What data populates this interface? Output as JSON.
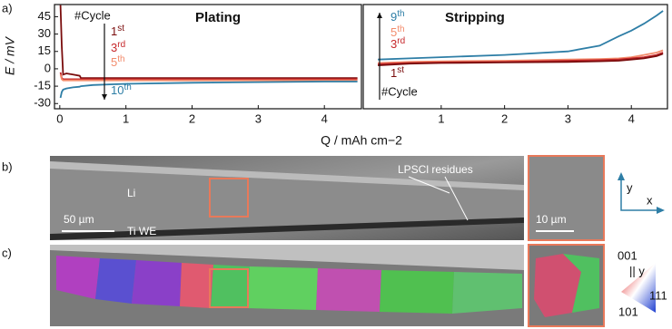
{
  "chart_data": [
    {
      "type": "line",
      "title": "Plating",
      "annotation": "#Cycle",
      "y_label": "E / mV",
      "x_label": "Q / mAh cm−2",
      "xlim": [
        -0.08,
        4.56
      ],
      "xticks": [
        0,
        1,
        2,
        3,
        4
      ],
      "ylim": [
        -34.5,
        55.5
      ],
      "yticks": [
        -30,
        -15,
        0,
        15,
        30,
        45
      ],
      "x": [
        0.01,
        0.03,
        0.05,
        0.1,
        0.2,
        0.3,
        0.32,
        0.5,
        1,
        2,
        3,
        4,
        4.5
      ],
      "series": [
        {
          "name": "1st",
          "color": "#7a0d0d",
          "values": [
            55,
            20,
            -5,
            -4,
            -5,
            -6,
            -8,
            -8,
            -8,
            -8,
            -8,
            -8,
            -8
          ]
        },
        {
          "name": "3rd",
          "color": "#c6282b",
          "values": [
            -3,
            -8,
            -9,
            -9,
            -9,
            -9,
            -9,
            -9,
            -9,
            -9,
            -9,
            -9,
            -9
          ]
        },
        {
          "name": "5th",
          "color": "#f28b6b",
          "values": [
            -5,
            -9,
            -10,
            -10,
            -10,
            -10,
            -10,
            -10,
            -10,
            -10,
            -10,
            -10,
            -10
          ]
        },
        {
          "name": "10th",
          "color": "#2e7ea6",
          "values": [
            -25,
            -20,
            -18,
            -17,
            -16,
            -15.5,
            -15,
            -14,
            -13,
            -12,
            -11.5,
            -11,
            -11
          ]
        }
      ]
    },
    {
      "type": "line",
      "title": "Stripping",
      "annotation": "#Cycle",
      "xlim": [
        -0.23,
        4.57
      ],
      "xticks": [
        1,
        2,
        3,
        4
      ],
      "ylim": [
        -34.5,
        55.5
      ],
      "x": [
        0,
        0.5,
        1,
        2,
        3,
        3.5,
        3.8,
        4,
        4.2,
        4.4,
        4.5
      ],
      "series": [
        {
          "name": "9th",
          "color": "#2e7ea6",
          "values": [
            8,
            9,
            10,
            12,
            15,
            20,
            28,
            33,
            39,
            46,
            50
          ]
        },
        {
          "name": "5th",
          "color": "#f28b6b",
          "values": [
            5,
            6,
            6.5,
            7,
            8,
            8.5,
            9,
            10,
            12,
            14,
            16
          ]
        },
        {
          "name": "3rd",
          "color": "#c6282b",
          "values": [
            4,
            5,
            5.5,
            6,
            7,
            7.5,
            8,
            9,
            10,
            12,
            14
          ]
        },
        {
          "name": "1st",
          "color": "#7a0d0d",
          "values": [
            3,
            4.5,
            5,
            5.5,
            6,
            6.5,
            7,
            8,
            9,
            11,
            13
          ]
        }
      ]
    }
  ],
  "figure": {
    "panel_a": "a)",
    "panel_b": "b)",
    "panel_c": "c)",
    "li": "Li",
    "ti_we": "Ti WE",
    "scale_main": "50 µm",
    "residues": "LPSCl residues",
    "scale_inset": "10 µm",
    "axis_y": "y",
    "axis_x": "x",
    "key_001": "001",
    "key_y": "|| y",
    "key_111": "111",
    "key_101": "101"
  }
}
